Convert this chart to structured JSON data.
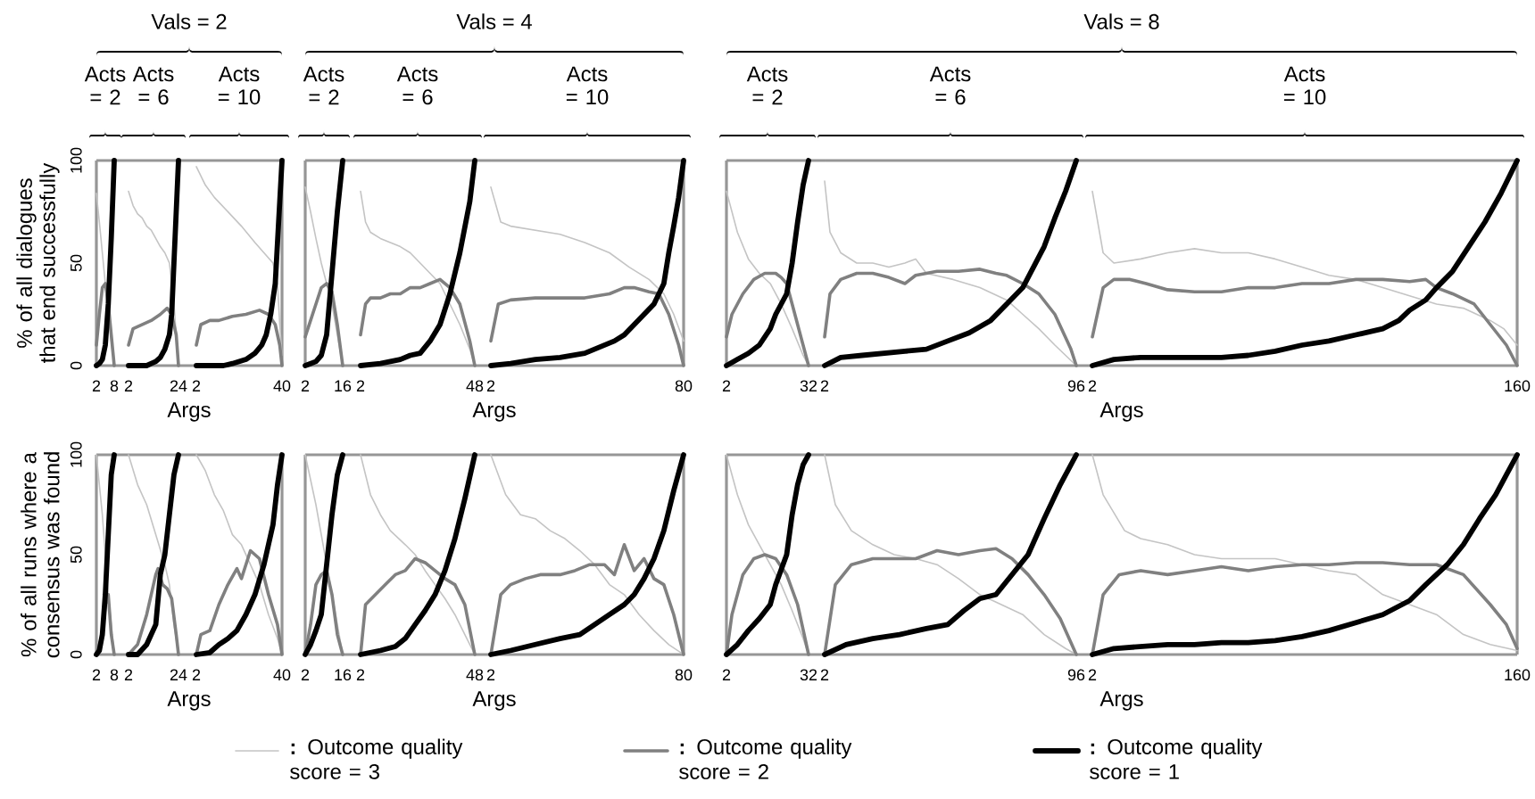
{
  "chart_data": [
    {
      "type": "line",
      "title": "Acts = 2",
      "ylabel": "% of all dialogues that end successfully",
      "xlim": [
        2,
        8
      ],
      "xticks": [
        2,
        8
      ],
      "ylim": [
        0,
        100
      ],
      "yticks": [
        0,
        50,
        100
      ],
      "series": [
        {
          "color": "#c4c4c4",
          "x": [
            2,
            3,
            4,
            5,
            6,
            7,
            8
          ],
          "values": [
            84,
            70,
            55,
            40,
            25,
            12,
            0
          ]
        },
        {
          "color": "#808080",
          "x": [
            2,
            3,
            4,
            5,
            6,
            7,
            8
          ],
          "values": [
            10,
            25,
            38,
            40,
            30,
            15,
            0
          ]
        },
        {
          "color": "#000000",
          "x": [
            2,
            3,
            4,
            5,
            6,
            7,
            8
          ],
          "values": [
            0,
            1,
            3,
            10,
            30,
            62,
            100
          ]
        }
      ]
    },
    {
      "type": "line",
      "title": "Acts = 6",
      "annotations": [
        "Vals = 2"
      ],
      "xlabel": "Args",
      "xlim": [
        2,
        24
      ],
      "xticks": [
        2,
        24
      ],
      "ylim": [
        0,
        100
      ],
      "tick_labels": "x",
      "series": [
        {
          "color": "#c4c4c4",
          "x": [
            2,
            4,
            6,
            8,
            10,
            12,
            14,
            16,
            18,
            20,
            22,
            24
          ],
          "values": [
            85,
            78,
            74,
            72,
            68,
            66,
            62,
            58,
            55,
            50,
            30,
            0
          ]
        },
        {
          "color": "#808080",
          "x": [
            2,
            4,
            8,
            12,
            16,
            19,
            21,
            23,
            24
          ],
          "values": [
            10,
            18,
            20,
            22,
            25,
            28,
            25,
            15,
            0
          ]
        },
        {
          "color": "#000000",
          "x": [
            2,
            10,
            12,
            14,
            16,
            18,
            20,
            21,
            22,
            23,
            24
          ],
          "values": [
            0,
            0,
            1,
            2,
            4,
            8,
            15,
            25,
            50,
            75,
            100
          ]
        }
      ]
    },
    {
      "type": "line",
      "title": "Acts = 10",
      "xlim": [
        2,
        40
      ],
      "xticks": [
        2,
        40
      ],
      "ylim": [
        0,
        100
      ],
      "tick_labels": "x",
      "series": [
        {
          "color": "#c4c4c4",
          "x": [
            2,
            6,
            10,
            16,
            22,
            28,
            32,
            36,
            38,
            39,
            40
          ],
          "values": [
            97,
            88,
            82,
            75,
            68,
            60,
            55,
            50,
            40,
            20,
            5
          ]
        },
        {
          "color": "#808080",
          "x": [
            2,
            4,
            8,
            12,
            18,
            24,
            30,
            34,
            37,
            39,
            40
          ],
          "values": [
            10,
            20,
            22,
            22,
            24,
            25,
            27,
            25,
            20,
            10,
            0
          ]
        },
        {
          "color": "#000000",
          "x": [
            2,
            14,
            18,
            24,
            28,
            31,
            33,
            35,
            37,
            38,
            39,
            40
          ],
          "values": [
            0,
            0,
            1,
            3,
            6,
            10,
            15,
            25,
            40,
            60,
            80,
            100
          ]
        }
      ]
    },
    {
      "type": "line",
      "title": "Acts = 2",
      "xlim": [
        2,
        16
      ],
      "xticks": [
        2,
        16
      ],
      "ylim": [
        0,
        100
      ],
      "tick_labels": "x",
      "series": [
        {
          "color": "#c4c4c4",
          "x": [
            2,
            4,
            6,
            8,
            10,
            12,
            14,
            16
          ],
          "values": [
            87,
            75,
            62,
            50,
            40,
            30,
            15,
            0
          ]
        },
        {
          "color": "#808080",
          "x": [
            2,
            4,
            6,
            8,
            10,
            12,
            14,
            16
          ],
          "values": [
            14,
            22,
            30,
            38,
            40,
            36,
            20,
            0
          ]
        },
        {
          "color": "#000000",
          "x": [
            2,
            4,
            6,
            8,
            10,
            12,
            14,
            16
          ],
          "values": [
            0,
            1,
            2,
            5,
            15,
            45,
            75,
            100
          ]
        }
      ]
    },
    {
      "type": "line",
      "title": "Acts = 6",
      "annotations": [
        "Vals = 4"
      ],
      "xlabel": "Args",
      "xlim": [
        2,
        48
      ],
      "xticks": [
        2,
        48
      ],
      "ylim": [
        0,
        100
      ],
      "tick_labels": "x",
      "series": [
        {
          "color": "#c4c4c4",
          "x": [
            2,
            4,
            6,
            10,
            14,
            18,
            22,
            26,
            30,
            34,
            38,
            42,
            46,
            48
          ],
          "values": [
            85,
            70,
            65,
            62,
            60,
            58,
            55,
            50,
            45,
            40,
            30,
            20,
            8,
            0
          ]
        },
        {
          "color": "#808080",
          "x": [
            2,
            4,
            6,
            10,
            14,
            18,
            22,
            26,
            30,
            34,
            38,
            42,
            46,
            48
          ],
          "values": [
            15,
            30,
            33,
            33,
            35,
            35,
            38,
            38,
            40,
            42,
            38,
            30,
            12,
            0
          ]
        },
        {
          "color": "#000000",
          "x": [
            2,
            10,
            18,
            22,
            26,
            30,
            34,
            38,
            42,
            46,
            48
          ],
          "values": [
            0,
            1,
            3,
            5,
            6,
            12,
            20,
            35,
            55,
            80,
            100
          ]
        }
      ]
    },
    {
      "type": "line",
      "title": "Acts = 10",
      "xlim": [
        2,
        80
      ],
      "xticks": [
        2,
        80
      ],
      "ylim": [
        0,
        100
      ],
      "tick_labels": "x",
      "series": [
        {
          "color": "#c4c4c4",
          "x": [
            2,
            6,
            10,
            20,
            30,
            40,
            50,
            58,
            66,
            72,
            76,
            80
          ],
          "values": [
            87,
            70,
            68,
            66,
            64,
            60,
            55,
            48,
            42,
            35,
            25,
            12
          ]
        },
        {
          "color": "#808080",
          "x": [
            2,
            5,
            10,
            20,
            30,
            40,
            50,
            56,
            60,
            66,
            70,
            74,
            78,
            80
          ],
          "values": [
            12,
            30,
            32,
            33,
            33,
            33,
            35,
            38,
            38,
            36,
            35,
            25,
            10,
            0
          ]
        },
        {
          "color": "#000000",
          "x": [
            2,
            10,
            20,
            30,
            40,
            46,
            52,
            56,
            60,
            64,
            68,
            70,
            72,
            74,
            76,
            78,
            80
          ],
          "values": [
            0,
            1,
            3,
            4,
            6,
            9,
            12,
            15,
            20,
            25,
            30,
            35,
            40,
            55,
            68,
            82,
            100
          ]
        }
      ]
    },
    {
      "type": "line",
      "title": "Acts = 2",
      "xlim": [
        2,
        32
      ],
      "xticks": [
        2,
        32
      ],
      "ylim": [
        0,
        100
      ],
      "tick_labels": "x",
      "series": [
        {
          "color": "#c4c4c4",
          "x": [
            2,
            6,
            10,
            14,
            18,
            22,
            26,
            30,
            32
          ],
          "values": [
            85,
            65,
            52,
            45,
            40,
            30,
            18,
            5,
            0
          ]
        },
        {
          "color": "#808080",
          "x": [
            2,
            4,
            8,
            12,
            16,
            20,
            22,
            24,
            26,
            30,
            32
          ],
          "values": [
            14,
            25,
            35,
            42,
            45,
            45,
            43,
            40,
            30,
            10,
            0
          ]
        },
        {
          "color": "#000000",
          "x": [
            2,
            6,
            10,
            14,
            18,
            20,
            24,
            26,
            28,
            30,
            32
          ],
          "values": [
            0,
            3,
            6,
            10,
            18,
            25,
            35,
            50,
            70,
            88,
            100
          ]
        }
      ]
    },
    {
      "type": "line",
      "title": "Acts = 6",
      "annotations": [
        "Vals = 8"
      ],
      "xlabel": "Args",
      "xlim": [
        2,
        96
      ],
      "xticks": [
        2,
        96
      ],
      "ylim": [
        0,
        100
      ],
      "tick_labels": "x",
      "series": [
        {
          "color": "#c4c4c4",
          "x": [
            2,
            4,
            8,
            14,
            20,
            26,
            32,
            36,
            40,
            50,
            60,
            70,
            76,
            82,
            88,
            92,
            96
          ],
          "values": [
            90,
            65,
            55,
            50,
            50,
            48,
            50,
            52,
            45,
            42,
            38,
            32,
            25,
            18,
            10,
            5,
            0
          ]
        },
        {
          "color": "#808080",
          "x": [
            2,
            4,
            8,
            14,
            20,
            26,
            32,
            36,
            44,
            52,
            60,
            66,
            70,
            76,
            82,
            88,
            94,
            96
          ],
          "values": [
            14,
            35,
            42,
            45,
            45,
            43,
            40,
            44,
            46,
            46,
            47,
            45,
            44,
            40,
            35,
            25,
            8,
            0
          ]
        },
        {
          "color": "#000000",
          "x": [
            2,
            8,
            16,
            24,
            32,
            40,
            48,
            56,
            64,
            70,
            76,
            80,
            84,
            88,
            92,
            96
          ],
          "values": [
            0,
            4,
            5,
            6,
            7,
            8,
            12,
            16,
            22,
            30,
            38,
            48,
            58,
            72,
            85,
            100
          ]
        }
      ]
    },
    {
      "type": "line",
      "title": "Acts = 10",
      "xlim": [
        2,
        160
      ],
      "xticks": [
        2,
        160
      ],
      "ylim": [
        0,
        100
      ],
      "tick_labels": "x",
      "series": [
        {
          "color": "#c4c4c4",
          "x": [
            2,
            6,
            10,
            20,
            30,
            40,
            50,
            60,
            70,
            80,
            90,
            100,
            110,
            120,
            130,
            140,
            150,
            155,
            160
          ],
          "values": [
            85,
            55,
            50,
            52,
            55,
            57,
            55,
            55,
            52,
            48,
            44,
            42,
            38,
            34,
            30,
            28,
            22,
            18,
            10
          ]
        },
        {
          "color": "#808080",
          "x": [
            2,
            6,
            10,
            16,
            22,
            30,
            40,
            50,
            60,
            70,
            80,
            90,
            100,
            110,
            120,
            126,
            130,
            136,
            144,
            150,
            156,
            160
          ],
          "values": [
            14,
            38,
            42,
            42,
            40,
            37,
            36,
            36,
            38,
            38,
            40,
            40,
            42,
            42,
            41,
            42,
            38,
            35,
            30,
            20,
            10,
            0
          ]
        },
        {
          "color": "#000000",
          "x": [
            2,
            10,
            20,
            30,
            40,
            50,
            60,
            70,
            80,
            90,
            100,
            110,
            116,
            120,
            126,
            130,
            136,
            142,
            148,
            154,
            160
          ],
          "values": [
            0,
            3,
            4,
            4,
            4,
            4,
            5,
            7,
            10,
            12,
            15,
            18,
            22,
            27,
            32,
            38,
            46,
            58,
            70,
            84,
            100
          ]
        }
      ]
    },
    {
      "type": "line",
      "ylabel": "% of all runs where a consensus was found",
      "xlim": [
        2,
        8
      ],
      "xticks": [
        2,
        8
      ],
      "ylim": [
        0,
        100
      ],
      "yticks": [
        0,
        50,
        100
      ],
      "series": [
        {
          "color": "#c4c4c4",
          "x": [
            2,
            4,
            6,
            8
          ],
          "values": [
            100,
            70,
            30,
            0
          ]
        },
        {
          "color": "#808080",
          "x": [
            2,
            4,
            5,
            6,
            7,
            8
          ],
          "values": [
            0,
            10,
            25,
            30,
            10,
            0
          ]
        },
        {
          "color": "#000000",
          "x": [
            2,
            3,
            4,
            5,
            6,
            7,
            8
          ],
          "values": [
            0,
            2,
            10,
            30,
            60,
            90,
            100
          ]
        }
      ]
    },
    {
      "type": "line",
      "xlabel": "Args",
      "xlim": [
        2,
        24
      ],
      "xticks": [
        2,
        24
      ],
      "ylim": [
        0,
        100
      ],
      "tick_labels": "x",
      "series": [
        {
          "color": "#c4c4c4",
          "x": [
            2,
            6,
            10,
            14,
            18,
            20,
            22,
            24
          ],
          "values": [
            100,
            85,
            75,
            60,
            45,
            35,
            15,
            0
          ]
        },
        {
          "color": "#808080",
          "x": [
            2,
            6,
            10,
            14,
            15,
            17,
            19,
            21,
            23,
            24
          ],
          "values": [
            0,
            5,
            20,
            40,
            43,
            35,
            33,
            28,
            10,
            0
          ]
        },
        {
          "color": "#000000",
          "x": [
            2,
            6,
            10,
            14,
            16,
            18,
            20,
            22,
            24
          ],
          "values": [
            0,
            0,
            5,
            15,
            40,
            50,
            70,
            90,
            100
          ]
        }
      ]
    },
    {
      "type": "line",
      "xlim": [
        2,
        40
      ],
      "xticks": [
        2,
        40
      ],
      "ylim": [
        0,
        100
      ],
      "tick_labels": "x",
      "series": [
        {
          "color": "#c4c4c4",
          "x": [
            2,
            6,
            10,
            14,
            18,
            22,
            26,
            30,
            34,
            38,
            40
          ],
          "values": [
            100,
            92,
            80,
            72,
            60,
            55,
            45,
            35,
            20,
            8,
            0
          ]
        },
        {
          "color": "#808080",
          "x": [
            2,
            4,
            8,
            12,
            16,
            20,
            22,
            26,
            30,
            34,
            38,
            40
          ],
          "values": [
            0,
            10,
            12,
            25,
            35,
            43,
            38,
            52,
            48,
            30,
            15,
            0
          ]
        },
        {
          "color": "#000000",
          "x": [
            2,
            8,
            12,
            16,
            20,
            24,
            28,
            32,
            36,
            38,
            40
          ],
          "values": [
            0,
            1,
            5,
            8,
            12,
            20,
            30,
            45,
            65,
            85,
            100
          ]
        }
      ]
    },
    {
      "type": "line",
      "xlim": [
        2,
        16
      ],
      "xticks": [
        2,
        16
      ],
      "ylim": [
        0,
        100
      ],
      "tick_labels": "x",
      "series": [
        {
          "color": "#c4c4c4",
          "x": [
            2,
            6,
            10,
            14,
            16
          ],
          "values": [
            100,
            75,
            45,
            15,
            0
          ]
        },
        {
          "color": "#808080",
          "x": [
            2,
            4,
            6,
            8,
            10,
            12,
            14,
            16
          ],
          "values": [
            0,
            15,
            35,
            40,
            42,
            30,
            10,
            0
          ]
        },
        {
          "color": "#000000",
          "x": [
            2,
            4,
            6,
            8,
            10,
            12,
            14,
            16
          ],
          "values": [
            0,
            5,
            12,
            20,
            45,
            70,
            90,
            100
          ]
        }
      ]
    },
    {
      "type": "line",
      "xlabel": "Args",
      "xlim": [
        2,
        48
      ],
      "xticks": [
        2,
        48
      ],
      "ylim": [
        0,
        100
      ],
      "tick_labels": "x",
      "series": [
        {
          "color": "#c4c4c4",
          "x": [
            2,
            6,
            10,
            14,
            20,
            24,
            28,
            32,
            36,
            40,
            44,
            48
          ],
          "values": [
            100,
            80,
            70,
            62,
            55,
            50,
            42,
            35,
            28,
            20,
            10,
            0
          ]
        },
        {
          "color": "#808080",
          "x": [
            2,
            4,
            8,
            12,
            16,
            20,
            24,
            28,
            32,
            36,
            40,
            44,
            48
          ],
          "values": [
            0,
            25,
            30,
            35,
            40,
            42,
            48,
            46,
            42,
            38,
            35,
            25,
            0
          ]
        },
        {
          "color": "#000000",
          "x": [
            2,
            10,
            16,
            20,
            24,
            28,
            32,
            36,
            40,
            44,
            48
          ],
          "values": [
            0,
            2,
            4,
            8,
            15,
            22,
            30,
            42,
            58,
            78,
            100
          ]
        }
      ]
    },
    {
      "type": "line",
      "xlim": [
        2,
        80
      ],
      "xticks": [
        2,
        80
      ],
      "ylim": [
        0,
        100
      ],
      "tick_labels": "x",
      "series": [
        {
          "color": "#c4c4c4",
          "x": [
            2,
            8,
            14,
            20,
            26,
            32,
            38,
            44,
            50,
            56,
            62,
            68,
            74,
            80
          ],
          "values": [
            100,
            80,
            70,
            68,
            62,
            58,
            52,
            45,
            35,
            30,
            20,
            12,
            5,
            0
          ]
        },
        {
          "color": "#808080",
          "x": [
            2,
            6,
            10,
            16,
            22,
            30,
            36,
            42,
            48,
            52,
            56,
            60,
            64,
            68,
            72,
            76,
            80
          ],
          "values": [
            0,
            30,
            35,
            38,
            40,
            40,
            42,
            45,
            45,
            40,
            55,
            42,
            48,
            38,
            35,
            20,
            0
          ]
        },
        {
          "color": "#000000",
          "x": [
            2,
            10,
            20,
            30,
            38,
            44,
            50,
            56,
            60,
            64,
            68,
            72,
            76,
            80
          ],
          "values": [
            0,
            2,
            5,
            8,
            10,
            15,
            20,
            25,
            30,
            38,
            48,
            62,
            82,
            100
          ]
        }
      ]
    },
    {
      "type": "line",
      "xlim": [
        2,
        32
      ],
      "xticks": [
        2,
        32
      ],
      "ylim": [
        0,
        100
      ],
      "tick_labels": "x",
      "series": [
        {
          "color": "#c4c4c4",
          "x": [
            2,
            6,
            10,
            14,
            18,
            22,
            26,
            30,
            32
          ],
          "values": [
            100,
            80,
            65,
            55,
            45,
            35,
            22,
            8,
            0
          ]
        },
        {
          "color": "#808080",
          "x": [
            2,
            4,
            8,
            12,
            16,
            20,
            24,
            28,
            32
          ],
          "values": [
            0,
            20,
            40,
            48,
            50,
            48,
            40,
            25,
            0
          ]
        },
        {
          "color": "#000000",
          "x": [
            2,
            6,
            10,
            14,
            18,
            20,
            24,
            26,
            28,
            30,
            32
          ],
          "values": [
            0,
            5,
            12,
            18,
            25,
            35,
            50,
            70,
            85,
            95,
            100
          ]
        }
      ]
    },
    {
      "type": "line",
      "xlabel": "Args",
      "xlim": [
        2,
        96
      ],
      "xticks": [
        2,
        96
      ],
      "ylim": [
        0,
        100
      ],
      "tick_labels": "x",
      "series": [
        {
          "color": "#c4c4c4",
          "x": [
            2,
            6,
            12,
            20,
            28,
            36,
            44,
            52,
            60,
            68,
            76,
            84,
            92,
            96
          ],
          "values": [
            100,
            75,
            62,
            55,
            50,
            48,
            45,
            38,
            30,
            25,
            20,
            10,
            3,
            0
          ]
        },
        {
          "color": "#808080",
          "x": [
            2,
            6,
            12,
            20,
            28,
            36,
            44,
            52,
            60,
            66,
            72,
            78,
            84,
            90,
            96
          ],
          "values": [
            0,
            35,
            45,
            48,
            48,
            48,
            52,
            50,
            52,
            53,
            48,
            40,
            30,
            18,
            0
          ]
        },
        {
          "color": "#000000",
          "x": [
            2,
            10,
            20,
            30,
            40,
            48,
            54,
            60,
            66,
            72,
            78,
            84,
            90,
            96
          ],
          "values": [
            0,
            5,
            8,
            10,
            13,
            15,
            22,
            28,
            30,
            40,
            50,
            68,
            85,
            100
          ]
        }
      ]
    },
    {
      "type": "line",
      "xlim": [
        2,
        160
      ],
      "xticks": [
        2,
        160
      ],
      "ylim": [
        0,
        100
      ],
      "tick_labels": "x",
      "legend": "bottom",
      "series": [
        {
          "name": "**:** Outcome quality score = 3",
          "color": "#c4c4c4",
          "x": [
            2,
            6,
            14,
            20,
            30,
            40,
            50,
            60,
            70,
            80,
            90,
            100,
            110,
            120,
            130,
            140,
            150,
            160
          ],
          "values": [
            100,
            80,
            62,
            58,
            55,
            50,
            48,
            48,
            48,
            45,
            42,
            40,
            30,
            25,
            20,
            10,
            5,
            2
          ]
        },
        {
          "name": "**:** Outcome quality score = 2",
          "color": "#808080",
          "x": [
            2,
            6,
            12,
            20,
            30,
            40,
            50,
            60,
            70,
            80,
            90,
            100,
            110,
            120,
            130,
            140,
            150,
            156,
            160
          ],
          "values": [
            0,
            30,
            40,
            42,
            40,
            42,
            44,
            42,
            44,
            45,
            45,
            46,
            46,
            45,
            45,
            40,
            25,
            15,
            3
          ]
        },
        {
          "name": "**:** Outcome quality score = 1",
          "color": "#000000",
          "x": [
            2,
            10,
            20,
            30,
            40,
            50,
            60,
            70,
            80,
            90,
            100,
            110,
            120,
            126,
            134,
            140,
            146,
            152,
            156,
            160
          ],
          "values": [
            0,
            3,
            4,
            5,
            5,
            6,
            6,
            7,
            9,
            12,
            16,
            20,
            27,
            35,
            45,
            55,
            68,
            80,
            90,
            100
          ]
        }
      ]
    }
  ]
}
